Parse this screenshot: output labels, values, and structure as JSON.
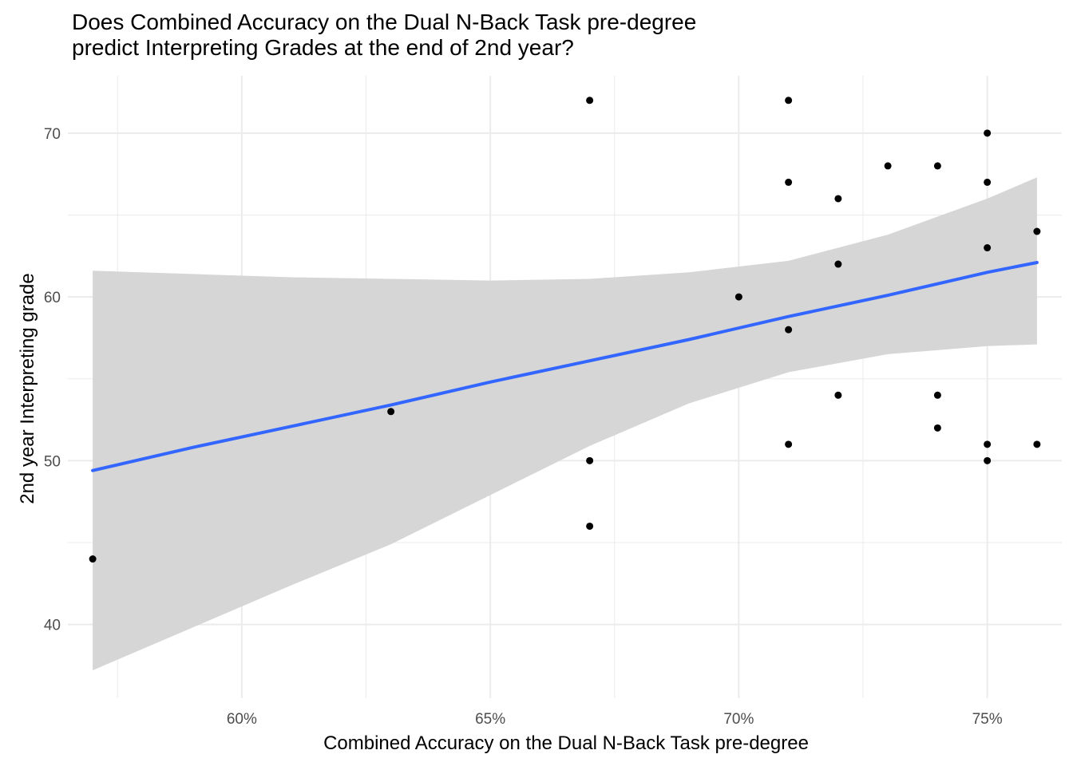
{
  "chart_data": {
    "type": "scatter",
    "title": "Does Combined Accuracy on the Dual N-Back Task pre-degree\npredict Interpreting Grades at the end of 2nd year?",
    "xlabel": "Combined Accuracy on the Dual N-Back Task pre-degree",
    "ylabel": "2nd year Interpreting grade",
    "xlim": [
      56.5,
      76.5
    ],
    "ylim": [
      35.5,
      73.5
    ],
    "x_ticks": [
      60,
      65,
      70,
      75
    ],
    "x_tick_labels": [
      "60%",
      "65%",
      "70%",
      "75%"
    ],
    "y_ticks": [
      40,
      50,
      60,
      70
    ],
    "y_tick_labels": [
      "40",
      "50",
      "60",
      "70"
    ],
    "grid": true,
    "points": [
      {
        "x": 57,
        "y": 44
      },
      {
        "x": 63,
        "y": 53
      },
      {
        "x": 67,
        "y": 72
      },
      {
        "x": 67,
        "y": 50
      },
      {
        "x": 67,
        "y": 46
      },
      {
        "x": 70,
        "y": 60
      },
      {
        "x": 71,
        "y": 72
      },
      {
        "x": 71,
        "y": 67
      },
      {
        "x": 71,
        "y": 58
      },
      {
        "x": 71,
        "y": 51
      },
      {
        "x": 72,
        "y": 66
      },
      {
        "x": 72,
        "y": 62
      },
      {
        "x": 72,
        "y": 54
      },
      {
        "x": 73,
        "y": 68
      },
      {
        "x": 74,
        "y": 68
      },
      {
        "x": 74,
        "y": 54
      },
      {
        "x": 74,
        "y": 52
      },
      {
        "x": 75,
        "y": 70
      },
      {
        "x": 75,
        "y": 67
      },
      {
        "x": 75,
        "y": 63
      },
      {
        "x": 75,
        "y": 51
      },
      {
        "x": 75,
        "y": 50
      },
      {
        "x": 76,
        "y": 64
      },
      {
        "x": 76,
        "y": 51
      }
    ],
    "trend": {
      "method": "lm",
      "x": [
        57,
        59,
        61,
        63,
        65,
        67,
        69,
        71,
        73,
        75,
        76
      ],
      "fit": [
        49.4,
        50.8,
        52.1,
        53.4,
        54.8,
        56.1,
        57.4,
        58.8,
        60.1,
        61.5,
        62.1
      ],
      "lower": [
        37.2,
        39.8,
        42.4,
        44.9,
        47.9,
        50.9,
        53.5,
        55.4,
        56.5,
        57.0,
        57.1
      ],
      "upper": [
        61.6,
        61.4,
        61.2,
        61.1,
        61.0,
        61.1,
        61.5,
        62.2,
        63.8,
        66.0,
        67.3
      ],
      "line_color": "#3366ff",
      "band_color": "#d6d6d6"
    },
    "point_color": "#000000",
    "grid_color": "#ebebeb"
  }
}
